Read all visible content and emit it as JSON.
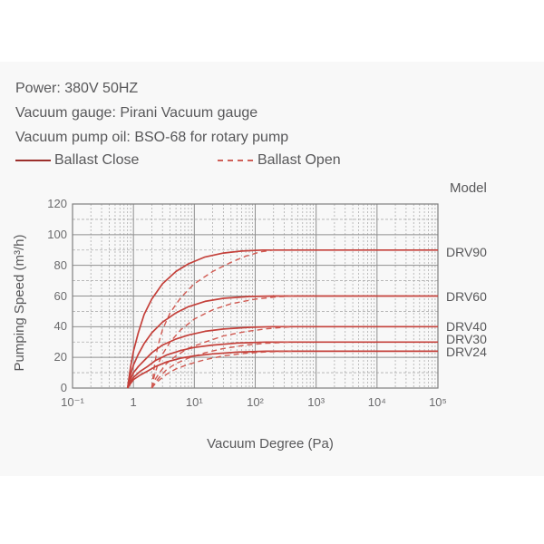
{
  "specs": {
    "power": "Power: 380V 50HZ",
    "gauge": "Vacuum gauge: Pirani Vacuum gauge",
    "oil": "Vacuum pump oil: BSO-68 for rotary pump"
  },
  "legend": {
    "close_label": "Ballast Close",
    "open_label": "Ballast Open",
    "close_color": "#9c2f2c",
    "open_color": "#cf5f58"
  },
  "chart_data": {
    "type": "line",
    "title": "",
    "xlabel": "Vacuum Degree (Pa)",
    "ylabel": "Pumping Speed (m³/h)",
    "model_title": "Model",
    "x_scale": "log",
    "xlim": [
      0.1,
      100000
    ],
    "ylim": [
      0,
      120
    ],
    "x_ticks": [
      {
        "value": 0.1,
        "label": "10⁻¹"
      },
      {
        "value": 1,
        "label": "1"
      },
      {
        "value": 10,
        "label": "10¹"
      },
      {
        "value": 100,
        "label": "10²"
      },
      {
        "value": 1000,
        "label": "10³"
      },
      {
        "value": 10000,
        "label": "10⁴"
      },
      {
        "value": 100000,
        "label": "10⁵"
      }
    ],
    "y_ticks": [
      0,
      20,
      40,
      60,
      80,
      100,
      120
    ],
    "grid": {
      "major": "solid",
      "minor": "dashed",
      "minor_x_per_decade": [
        2,
        3,
        4,
        5,
        6,
        7,
        8,
        9
      ],
      "minor_y_step": 10
    },
    "colors": {
      "close_curve": "#c4403a",
      "open_curve": "#d05a52",
      "grid_major": "#8f8f8f",
      "grid_minor": "#aeaeae",
      "border": "#7f7f7f"
    },
    "models": [
      {
        "name": "DRV90",
        "max_speed": 90,
        "label_dy": 2
      },
      {
        "name": "DRV60",
        "max_speed": 60,
        "label_dy": 0
      },
      {
        "name": "DRV40",
        "max_speed": 40,
        "label_dy": 0
      },
      {
        "name": "DRV30",
        "max_speed": 30,
        "label_dy": -3
      },
      {
        "name": "DRV24",
        "max_speed": 24,
        "label_dy": 1
      }
    ],
    "series": [
      {
        "model": "DRV90",
        "ballast": "close",
        "style": "solid",
        "points": [
          [
            0.8,
            0
          ],
          [
            0.9,
            14
          ],
          [
            1,
            24
          ],
          [
            1.2,
            36
          ],
          [
            1.5,
            48
          ],
          [
            2,
            58
          ],
          [
            3,
            68
          ],
          [
            5,
            76
          ],
          [
            8,
            81
          ],
          [
            15,
            85.5
          ],
          [
            30,
            88
          ],
          [
            60,
            89.3
          ],
          [
            130,
            90
          ],
          [
            100000,
            90
          ]
        ]
      },
      {
        "model": "DRV90",
        "ballast": "open",
        "style": "dashed",
        "points": [
          [
            2,
            0
          ],
          [
            2.2,
            14
          ],
          [
            2.5,
            27
          ],
          [
            3,
            38
          ],
          [
            4,
            49
          ],
          [
            6,
            59
          ],
          [
            10,
            68
          ],
          [
            20,
            76
          ],
          [
            40,
            82
          ],
          [
            70,
            86
          ],
          [
            120,
            88.7
          ],
          [
            200,
            90
          ]
        ]
      },
      {
        "model": "DRV60",
        "ballast": "close",
        "style": "solid",
        "points": [
          [
            0.8,
            0
          ],
          [
            0.9,
            9
          ],
          [
            1,
            15
          ],
          [
            1.2,
            22
          ],
          [
            1.5,
            29
          ],
          [
            2,
            36
          ],
          [
            3,
            43
          ],
          [
            5,
            49
          ],
          [
            8,
            53
          ],
          [
            15,
            56.5
          ],
          [
            30,
            58.5
          ],
          [
            80,
            59.7
          ],
          [
            200,
            60
          ],
          [
            100000,
            60
          ]
        ]
      },
      {
        "model": "DRV60",
        "ballast": "open",
        "style": "dashed",
        "points": [
          [
            2,
            0
          ],
          [
            2.2,
            8
          ],
          [
            2.5,
            15
          ],
          [
            3,
            22
          ],
          [
            4,
            30
          ],
          [
            6,
            38
          ],
          [
            10,
            45
          ],
          [
            20,
            51
          ],
          [
            40,
            55
          ],
          [
            100,
            58
          ],
          [
            250,
            59.6
          ],
          [
            500,
            60
          ]
        ]
      },
      {
        "model": "DRV40",
        "ballast": "close",
        "style": "solid",
        "points": [
          [
            0.8,
            0
          ],
          [
            0.9,
            6
          ],
          [
            1,
            10
          ],
          [
            1.2,
            14
          ],
          [
            1.5,
            18
          ],
          [
            2,
            23
          ],
          [
            3,
            28
          ],
          [
            5,
            32
          ],
          [
            8,
            34.5
          ],
          [
            15,
            37
          ],
          [
            30,
            38.5
          ],
          [
            80,
            39.6
          ],
          [
            200,
            40
          ],
          [
            100000,
            40
          ]
        ]
      },
      {
        "model": "DRV40",
        "ballast": "open",
        "style": "dashed",
        "points": [
          [
            2,
            0
          ],
          [
            2.3,
            6
          ],
          [
            2.8,
            11
          ],
          [
            3.5,
            16
          ],
          [
            5,
            21
          ],
          [
            8,
            26
          ],
          [
            15,
            30
          ],
          [
            30,
            34
          ],
          [
            70,
            36.8
          ],
          [
            150,
            38.6
          ],
          [
            400,
            40
          ]
        ]
      },
      {
        "model": "DRV30",
        "ballast": "close",
        "style": "solid",
        "points": [
          [
            0.8,
            0
          ],
          [
            0.9,
            4
          ],
          [
            1,
            7
          ],
          [
            1.3,
            11
          ],
          [
            1.7,
            14
          ],
          [
            2.3,
            18
          ],
          [
            3.5,
            21.5
          ],
          [
            6,
            24.5
          ],
          [
            10,
            26.5
          ],
          [
            20,
            28
          ],
          [
            50,
            29.3
          ],
          [
            150,
            30
          ],
          [
            100000,
            30
          ]
        ]
      },
      {
        "model": "DRV30",
        "ballast": "open",
        "style": "dashed",
        "points": [
          [
            2,
            0
          ],
          [
            2.3,
            4
          ],
          [
            2.8,
            8
          ],
          [
            3.5,
            12
          ],
          [
            5,
            16
          ],
          [
            8,
            19.5
          ],
          [
            15,
            23
          ],
          [
            30,
            25.8
          ],
          [
            70,
            28
          ],
          [
            150,
            29.2
          ],
          [
            400,
            30
          ]
        ]
      },
      {
        "model": "DRV24",
        "ballast": "close",
        "style": "solid",
        "points": [
          [
            0.8,
            0
          ],
          [
            0.9,
            3
          ],
          [
            1,
            5.5
          ],
          [
            1.3,
            8.5
          ],
          [
            1.7,
            11
          ],
          [
            2.3,
            14
          ],
          [
            3.5,
            17
          ],
          [
            6,
            19.5
          ],
          [
            10,
            21
          ],
          [
            20,
            22.3
          ],
          [
            50,
            23.4
          ],
          [
            150,
            24
          ],
          [
            100000,
            24
          ]
        ]
      },
      {
        "model": "DRV24",
        "ballast": "open",
        "style": "dashed",
        "points": [
          [
            2,
            0
          ],
          [
            2.3,
            3
          ],
          [
            2.8,
            6
          ],
          [
            3.5,
            9
          ],
          [
            5,
            12.5
          ],
          [
            8,
            15.5
          ],
          [
            15,
            18.5
          ],
          [
            30,
            21
          ],
          [
            70,
            22.7
          ],
          [
            150,
            23.5
          ],
          [
            400,
            24
          ]
        ]
      }
    ]
  }
}
